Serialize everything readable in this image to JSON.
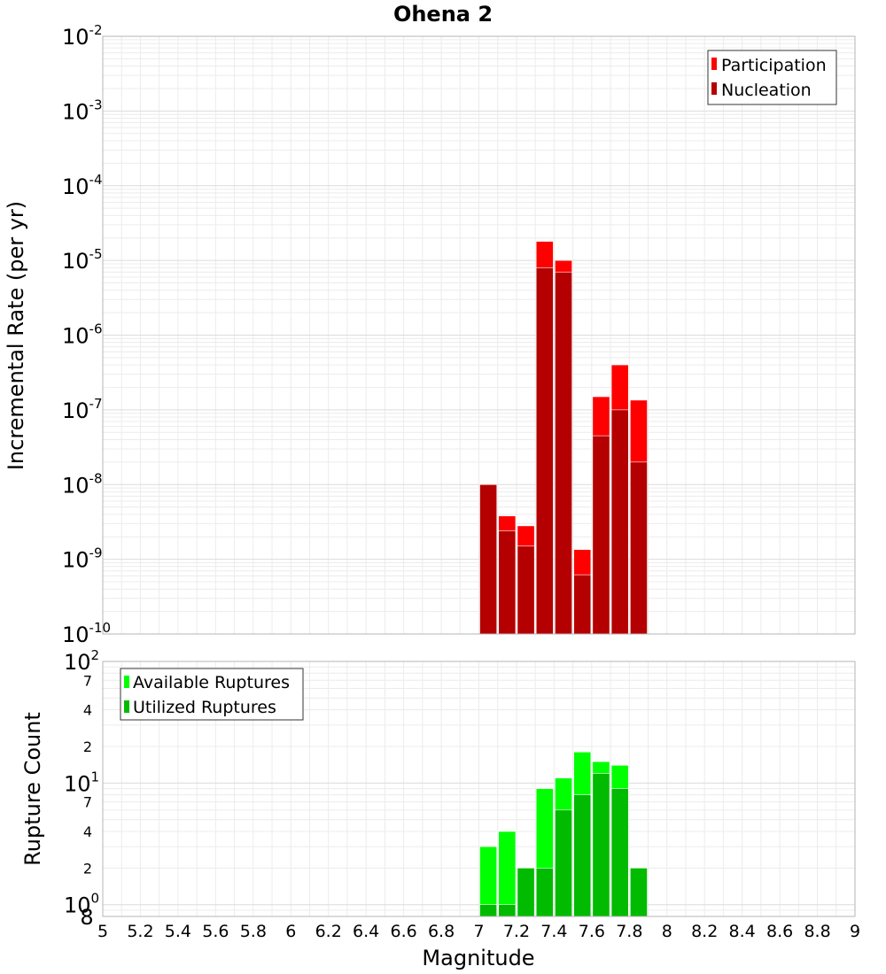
{
  "chart_data": [
    {
      "type": "bar",
      "title": "Ohena 2",
      "xlabel": "Magnitude",
      "ylabel": "Incremental Rate (per yr)",
      "y_scale": "log",
      "xlim": [
        5,
        9
      ],
      "ylim": [
        1e-10,
        0.01
      ],
      "grid": true,
      "legend_position": "top-right",
      "x_ticks": [
        "5",
        "5.2",
        "5.4",
        "5.6",
        "5.8",
        "6",
        "6.2",
        "6.4",
        "6.6",
        "6.8",
        "7",
        "7.2",
        "7.4",
        "7.6",
        "7.8",
        "8",
        "8.2",
        "8.4",
        "8.6",
        "8.8",
        "9"
      ],
      "y_ticks": [
        {
          "base": "10",
          "exp": "-10"
        },
        {
          "base": "10",
          "exp": "-9"
        },
        {
          "base": "10",
          "exp": "-8"
        },
        {
          "base": "10",
          "exp": "-7"
        },
        {
          "base": "10",
          "exp": "-6"
        },
        {
          "base": "10",
          "exp": "-5"
        },
        {
          "base": "10",
          "exp": "-4"
        },
        {
          "base": "10",
          "exp": "-3"
        },
        {
          "base": "10",
          "exp": "-2"
        }
      ],
      "x": [
        7.05,
        7.15,
        7.25,
        7.35,
        7.45,
        7.55,
        7.65,
        7.75,
        7.85
      ],
      "series": [
        {
          "name": "Participation",
          "color": "#ff0000",
          "values": [
            1e-08,
            3.8e-09,
            2.8e-09,
            1.8e-05,
            1e-05,
            1.35e-09,
            1.5e-07,
            4e-07,
            1.35e-07
          ]
        },
        {
          "name": "Nucleation",
          "color": "#b40000",
          "values": [
            1e-08,
            2.4e-09,
            1.5e-09,
            8e-06,
            7e-06,
            6.2e-10,
            4.5e-08,
            1e-07,
            2e-08
          ]
        }
      ]
    },
    {
      "type": "bar",
      "xlabel": "Magnitude",
      "ylabel": "Rupture Count",
      "y_scale": "log",
      "xlim": [
        5,
        9
      ],
      "ylim": [
        0.8,
        100
      ],
      "grid": true,
      "legend_position": "top-left",
      "y_ticks": [
        {
          "value": 0.8,
          "label": "8",
          "exp": ""
        },
        {
          "value": 1,
          "label": "10",
          "exp": "0"
        },
        {
          "value": 2,
          "label": "2",
          "exp": ""
        },
        {
          "value": 4,
          "label": "4",
          "exp": ""
        },
        {
          "value": 7,
          "label": "7",
          "exp": ""
        },
        {
          "value": 10,
          "label": "10",
          "exp": "1"
        },
        {
          "value": 20,
          "label": "2",
          "exp": ""
        },
        {
          "value": 40,
          "label": "4",
          "exp": ""
        },
        {
          "value": 70,
          "label": "7",
          "exp": ""
        },
        {
          "value": 100,
          "label": "10",
          "exp": "2"
        }
      ],
      "x": [
        7.05,
        7.15,
        7.25,
        7.35,
        7.45,
        7.55,
        7.65,
        7.75,
        7.85
      ],
      "series": [
        {
          "name": "Available Ruptures",
          "color": "#00ff00",
          "values": [
            3,
            4,
            2,
            9,
            11,
            18,
            15,
            14,
            2
          ]
        },
        {
          "name": "Utilized Ruptures",
          "color": "#00bb00",
          "values": [
            1,
            1,
            2,
            2,
            6,
            8,
            12,
            9,
            2
          ]
        }
      ]
    }
  ]
}
